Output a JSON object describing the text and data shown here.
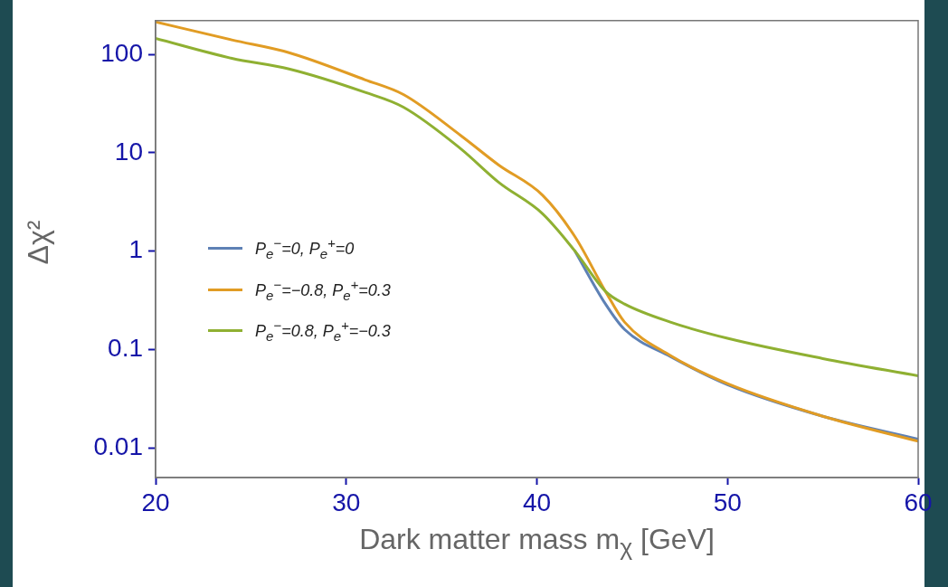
{
  "chart_data": {
    "type": "line",
    "xlabel": "Dark matter mass m$_{χ}$ [GeV]",
    "ylabel": "Δχ²",
    "x": [
      20,
      24,
      27,
      31,
      33,
      36,
      38,
      40.3,
      42,
      43.6,
      44.6,
      47,
      50,
      55,
      60
    ],
    "series": [
      {
        "name": "P$_{e}$$^{−}$=0, P$_{e}$$^{+}$=0",
        "color": "#5e81b5",
        "values": [
          null,
          null,
          null,
          null,
          null,
          null,
          null,
          null,
          1.0,
          0.29,
          0.16,
          0.085,
          0.044,
          0.021,
          0.0123
        ]
      },
      {
        "name": "P$_{e}$$^{−}$=−0.8, P$_{e}$$^{+}$=0.3",
        "color": "#e19c24",
        "values": [
          214,
          140,
          104,
          55,
          39,
          15,
          7.5,
          3.7,
          1.4,
          0.39,
          0.19,
          0.087,
          0.045,
          0.021,
          0.0117
        ]
      },
      {
        "name": "P$_{e}$$^{−}$=0.8, P$_{e}$$^{+}$=−0.3",
        "color": "#8fb032",
        "values": [
          145,
          91,
          71,
          41,
          29,
          11,
          5,
          2.4,
          1.0,
          0.39,
          0.29,
          0.19,
          0.13,
          0.081,
          0.054
        ]
      }
    ],
    "log": "y",
    "xlim": [
      20,
      60
    ],
    "ylim": [
      0.005,
      220
    ],
    "xticks": [
      20,
      30,
      40,
      50,
      60
    ],
    "yticks": [
      0.01,
      0.1,
      1,
      10,
      100
    ],
    "grid": false,
    "legend": "left",
    "marker": "none",
    "line_style": "solid"
  }
}
